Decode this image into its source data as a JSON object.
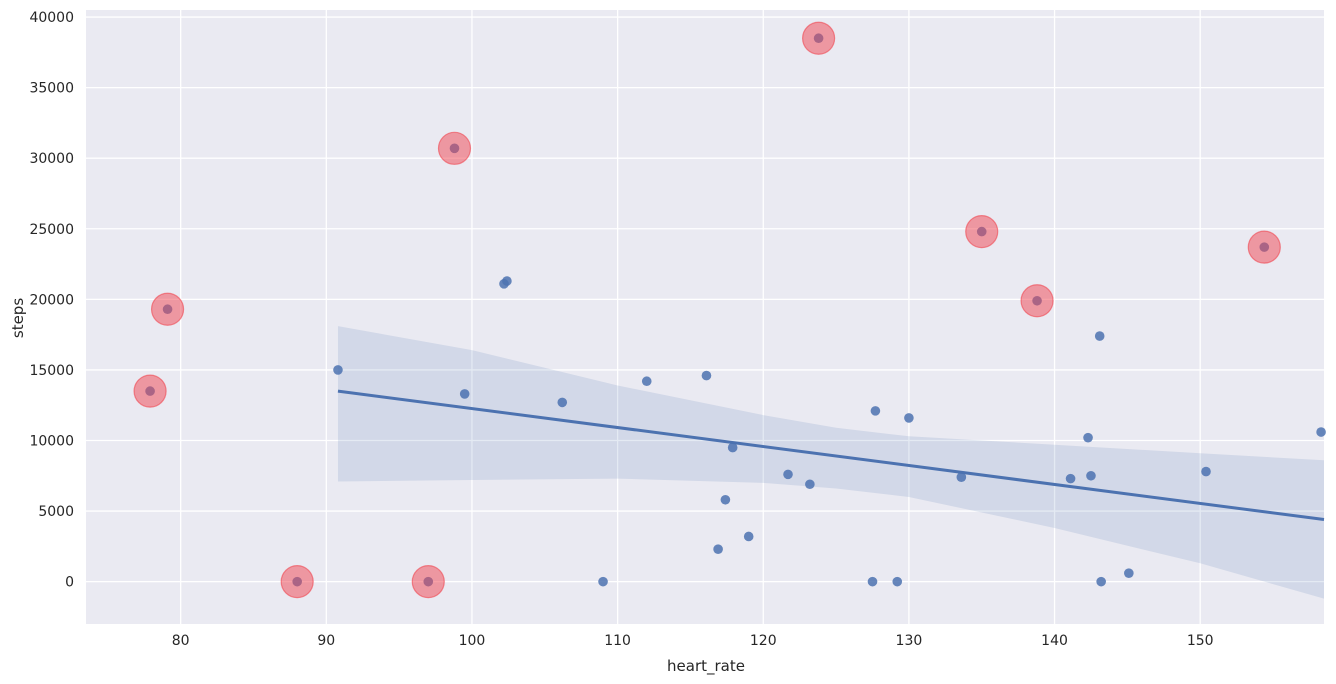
{
  "chart_data": {
    "type": "scatter",
    "title": "",
    "xlabel": "heart_rate",
    "ylabel": "steps",
    "xlim": [
      73.5,
      158.5
    ],
    "ylim": [
      -3000,
      40500
    ],
    "xticks": [
      80,
      90,
      100,
      110,
      120,
      130,
      140,
      150
    ],
    "yticks": [
      0,
      5000,
      10000,
      15000,
      20000,
      25000,
      30000,
      35000,
      40000
    ],
    "grid": true,
    "background": "#eaeaf2",
    "colors": {
      "points": "#4c72b0",
      "highlight": "#f0444f",
      "regression": "#4c72b0",
      "confidence_band": "#4c72b0"
    },
    "points": [
      {
        "x": 90.8,
        "y": 15000
      },
      {
        "x": 99.5,
        "y": 13300
      },
      {
        "x": 102.2,
        "y": 21100
      },
      {
        "x": 102.4,
        "y": 21300
      },
      {
        "x": 106.2,
        "y": 12700
      },
      {
        "x": 109.0,
        "y": 0
      },
      {
        "x": 112.0,
        "y": 14200
      },
      {
        "x": 116.1,
        "y": 14600
      },
      {
        "x": 116.9,
        "y": 2300
      },
      {
        "x": 117.4,
        "y": 5800
      },
      {
        "x": 117.9,
        "y": 9500
      },
      {
        "x": 119.0,
        "y": 3200
      },
      {
        "x": 121.7,
        "y": 7600
      },
      {
        "x": 123.2,
        "y": 6900
      },
      {
        "x": 127.5,
        "y": 0
      },
      {
        "x": 127.7,
        "y": 12100
      },
      {
        "x": 129.2,
        "y": 0
      },
      {
        "x": 130.0,
        "y": 11600
      },
      {
        "x": 133.6,
        "y": 7400
      },
      {
        "x": 141.1,
        "y": 7300
      },
      {
        "x": 142.3,
        "y": 10200
      },
      {
        "x": 142.5,
        "y": 7500
      },
      {
        "x": 143.1,
        "y": 17400
      },
      {
        "x": 143.2,
        "y": 0
      },
      {
        "x": 145.1,
        "y": 600
      },
      {
        "x": 150.4,
        "y": 7800
      },
      {
        "x": 158.3,
        "y": 10600
      },
      {
        "x": 77.9,
        "y": 13500
      },
      {
        "x": 79.1,
        "y": 19300
      },
      {
        "x": 88.0,
        "y": 0
      },
      {
        "x": 97.0,
        "y": 0
      },
      {
        "x": 98.8,
        "y": 30700
      },
      {
        "x": 123.8,
        "y": 38500
      },
      {
        "x": 135.0,
        "y": 24800
      },
      {
        "x": 138.8,
        "y": 19900
      },
      {
        "x": 154.4,
        "y": 23700
      }
    ],
    "highlighted_points": [
      {
        "x": 77.9,
        "y": 13500
      },
      {
        "x": 79.1,
        "y": 19300
      },
      {
        "x": 88.0,
        "y": 0
      },
      {
        "x": 97.0,
        "y": 0
      },
      {
        "x": 98.8,
        "y": 30700
      },
      {
        "x": 123.8,
        "y": 38500
      },
      {
        "x": 135.0,
        "y": 24800
      },
      {
        "x": 138.8,
        "y": 19900
      },
      {
        "x": 154.4,
        "y": 23700
      }
    ],
    "regression": {
      "x_start": 90.8,
      "y_start": 13500,
      "x_end": 158.5,
      "y_end": 4400
    },
    "confidence_band": {
      "x": [
        90.8,
        100,
        110,
        120,
        125,
        130,
        140,
        150,
        158.5
      ],
      "upper": [
        18100,
        16400,
        13900,
        11800,
        10900,
        10300,
        9700,
        9100,
        8600
      ],
      "lower": [
        7100,
        7200,
        7300,
        7000,
        6600,
        6000,
        3800,
        1300,
        -1200
      ]
    }
  }
}
